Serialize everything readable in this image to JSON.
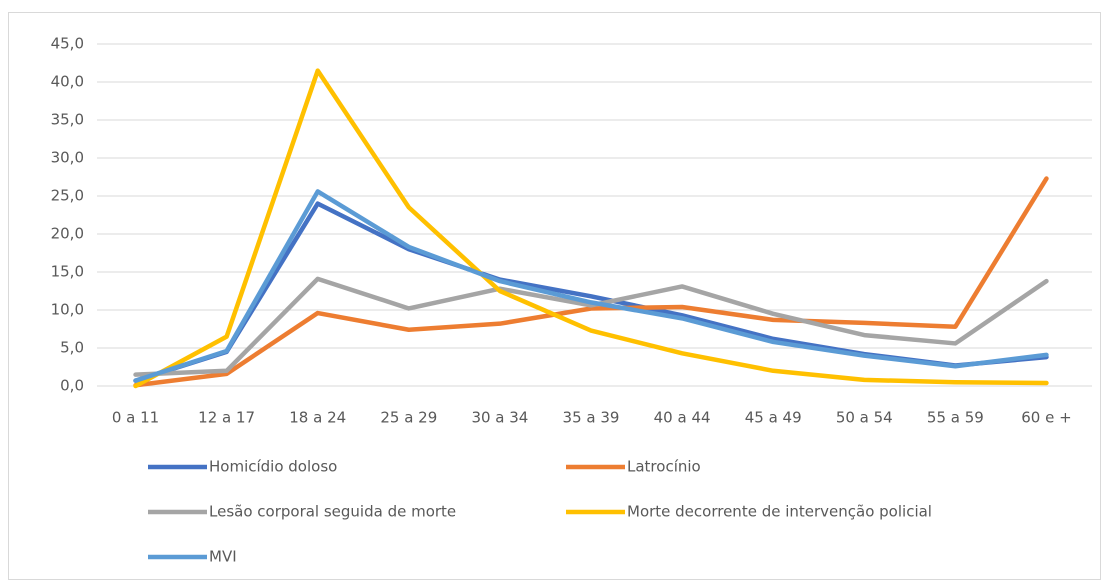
{
  "chart_data": {
    "type": "line",
    "categories": [
      "0 a 11",
      "12 a 17",
      "18 a 24",
      "25 a 29",
      "30 a 34",
      "35 a 39",
      "40 a 44",
      "45 a 49",
      "50 a 54",
      "55 a 59",
      "60 e +"
    ],
    "series": [
      {
        "name": "Homicídio doloso",
        "color": "#4472c4",
        "values": [
          0.7,
          4.5,
          24.0,
          18.0,
          14.0,
          11.8,
          9.3,
          6.2,
          4.2,
          2.7,
          3.8
        ]
      },
      {
        "name": "Latrocínio",
        "color": "#ed7d31",
        "values": [
          0.1,
          1.6,
          9.6,
          7.4,
          8.2,
          10.2,
          10.4,
          8.7,
          8.3,
          7.8,
          27.3
        ]
      },
      {
        "name": "Lesão corporal seguida de morte",
        "color": "#a5a5a5",
        "values": [
          1.5,
          2.0,
          14.1,
          10.2,
          12.8,
          10.6,
          13.1,
          9.5,
          6.7,
          5.6,
          13.8
        ]
      },
      {
        "name": "Morte decorrente de intervenção policial",
        "color": "#ffc000",
        "values": [
          0.0,
          6.5,
          41.5,
          23.5,
          12.5,
          7.3,
          4.3,
          2.0,
          0.8,
          0.5,
          0.4
        ]
      },
      {
        "name": "MVI",
        "color": "#5b9bd5",
        "values": [
          0.7,
          4.6,
          25.6,
          18.3,
          13.8,
          11.0,
          8.9,
          5.8,
          4.0,
          2.6,
          4.1
        ]
      }
    ],
    "ylim": [
      0,
      45
    ],
    "yticks": [
      {
        "value": 0,
        "label": "0,0"
      },
      {
        "value": 5,
        "label": "5,0"
      },
      {
        "value": 10,
        "label": "10,0"
      },
      {
        "value": 15,
        "label": "15,0"
      },
      {
        "value": 20,
        "label": "20,0"
      },
      {
        "value": 25,
        "label": "25,0"
      },
      {
        "value": 30,
        "label": "30,0"
      },
      {
        "value": 35,
        "label": "35,0"
      },
      {
        "value": 40,
        "label": "40,0"
      },
      {
        "value": 45,
        "label": "45,0"
      }
    ],
    "grid": true,
    "legend": "bottom"
  }
}
